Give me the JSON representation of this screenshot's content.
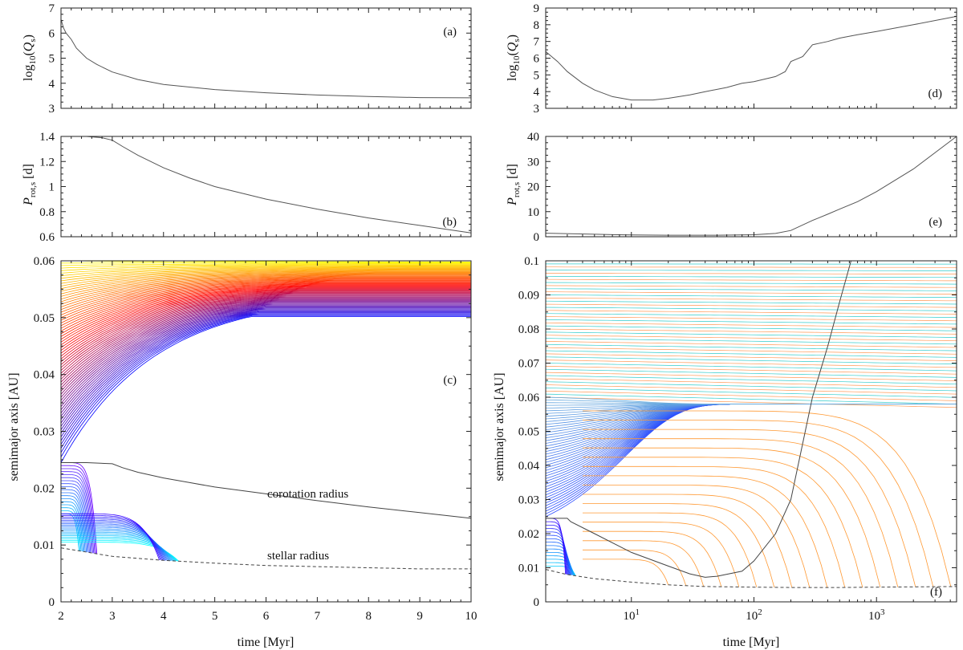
{
  "chart_data": [
    {
      "id": "a",
      "type": "line",
      "panel_label": "(a)",
      "ylabel": "log10(Qs)",
      "xlim": [
        2,
        10
      ],
      "ylim": [
        3,
        7
      ],
      "xscale": "linear",
      "xticks": [
        "2",
        "3",
        "4",
        "5",
        "6",
        "7",
        "8",
        "9",
        "10"
      ],
      "yticks": [
        "3",
        "4",
        "5",
        "6",
        "7"
      ],
      "series": [
        {
          "color": "#555555",
          "x": [
            2.0,
            2.05,
            2.1,
            2.2,
            2.3,
            2.5,
            2.7,
            3.0,
            3.5,
            4.0,
            5.0,
            6.0,
            7.0,
            8.0,
            9.0,
            10.0
          ],
          "y": [
            6.55,
            6.2,
            6.0,
            5.75,
            5.4,
            5.0,
            4.75,
            4.45,
            4.15,
            3.95,
            3.75,
            3.62,
            3.53,
            3.47,
            3.43,
            3.42
          ]
        }
      ]
    },
    {
      "id": "b",
      "type": "line",
      "panel_label": "(b)",
      "ylabel": "Prot,s [d]",
      "xlim": [
        2,
        10
      ],
      "ylim": [
        0.6,
        1.4
      ],
      "xscale": "linear",
      "xticks": [
        "2",
        "3",
        "4",
        "5",
        "6",
        "7",
        "8",
        "9",
        "10"
      ],
      "yticks": [
        "0.6",
        "0.8",
        "1",
        "1.2",
        "1.4"
      ],
      "series": [
        {
          "color": "#555555",
          "x": [
            2.0,
            2.5,
            2.8,
            3.0,
            3.2,
            3.5,
            4.0,
            4.5,
            5.0,
            6.0,
            7.0,
            8.0,
            9.0,
            10.0
          ],
          "y": [
            1.4,
            1.4,
            1.39,
            1.37,
            1.32,
            1.25,
            1.15,
            1.07,
            1.0,
            0.9,
            0.82,
            0.75,
            0.69,
            0.63
          ]
        }
      ]
    },
    {
      "id": "c",
      "type": "line",
      "panel_label": "(c)",
      "xlabel": "time [Myr]",
      "ylabel": "semimajor axis [AU]",
      "xlim": [
        2,
        10
      ],
      "ylim": [
        0,
        0.06
      ],
      "xscale": "linear",
      "xticks": [
        "2",
        "3",
        "4",
        "5",
        "6",
        "7",
        "8",
        "9",
        "10"
      ],
      "yticks": [
        "0",
        "0.01",
        "0.02",
        "0.03",
        "0.04",
        "0.05",
        "0.06"
      ],
      "annotations": [
        "corotation radius",
        "stellar radius"
      ],
      "corotation": {
        "x": [
          2.0,
          2.5,
          3.0,
          3.2,
          3.5,
          4.0,
          4.5,
          5.0,
          6.0,
          7.0,
          8.0,
          9.0,
          10.0
        ],
        "y": [
          0.0245,
          0.0245,
          0.0243,
          0.0236,
          0.0228,
          0.0218,
          0.021,
          0.0202,
          0.019,
          0.0178,
          0.0167,
          0.0157,
          0.0147
        ]
      },
      "stellar_radius": {
        "x": [
          2.0,
          3.0,
          4.0,
          5.0,
          6.0,
          7.0,
          8.0,
          9.0,
          10.0
        ],
        "y": [
          0.0095,
          0.008,
          0.0073,
          0.0068,
          0.0064,
          0.0062,
          0.006,
          0.0058,
          0.0058
        ]
      },
      "orbit_families": [
        {
          "description": "outward migrating orbits",
          "count": 70,
          "start_range": [
            0.0245,
            0.0605
          ],
          "asymptote": 0.0502,
          "color_range": [
            "#0000ff",
            "#ff0000",
            "#ffff00"
          ]
        },
        {
          "description": "inward migrating orbits (upper group)",
          "count": 18,
          "start_range": [
            0.0155,
            0.0245
          ],
          "color_range": [
            "#00ccff",
            "#6a00ff"
          ]
        },
        {
          "description": "inward migrating orbits (lower group)",
          "count": 18,
          "start_range": [
            0.0105,
            0.0155
          ],
          "color_range": [
            "#00ffff",
            "#3300ff"
          ]
        }
      ]
    },
    {
      "id": "d",
      "type": "line",
      "panel_label": "(d)",
      "ylabel": "log10(Qs)",
      "xlim": [
        2,
        4500
      ],
      "ylim": [
        3,
        9
      ],
      "xscale": "log",
      "yticks": [
        "3",
        "4",
        "5",
        "6",
        "7",
        "8",
        "9"
      ],
      "series": [
        {
          "color": "#555555",
          "x": [
            2,
            2.5,
            3,
            4,
            5,
            7,
            10,
            15,
            20,
            30,
            40,
            60,
            80,
            100,
            150,
            180,
            200,
            250,
            300,
            400,
            500,
            700,
            1000,
            2000,
            4500
          ],
          "y": [
            6.4,
            5.8,
            5.2,
            4.5,
            4.1,
            3.7,
            3.5,
            3.5,
            3.6,
            3.8,
            4.0,
            4.25,
            4.5,
            4.6,
            4.9,
            5.2,
            5.8,
            6.1,
            6.8,
            7.0,
            7.2,
            7.4,
            7.6,
            8.0,
            8.5
          ]
        }
      ]
    },
    {
      "id": "e",
      "type": "line",
      "panel_label": "(e)",
      "ylabel": "Prot,s [d]",
      "xlim": [
        2,
        4500
      ],
      "ylim": [
        0,
        40
      ],
      "xscale": "log",
      "yticks": [
        "0",
        "10",
        "20",
        "30",
        "40"
      ],
      "series": [
        {
          "color": "#555555",
          "x": [
            2,
            5,
            10,
            20,
            50,
            100,
            150,
            200,
            300,
            400,
            500,
            700,
            1000,
            2000,
            4500
          ],
          "y": [
            1.4,
            1.0,
            0.7,
            0.6,
            0.6,
            0.8,
            1.3,
            2.5,
            6.5,
            9.0,
            11.0,
            14.0,
            18.0,
            27.0,
            40.0
          ]
        }
      ]
    },
    {
      "id": "f",
      "type": "line",
      "panel_label": "(f)",
      "xlabel": "time [Myr]",
      "ylabel": "semimajor axis [AU]",
      "xlim": [
        2,
        4500
      ],
      "ylim": [
        0,
        0.1
      ],
      "xscale": "log",
      "xticks_major": [
        "10^1",
        "10^2",
        "10^3"
      ],
      "yticks": [
        "0",
        "0.01",
        "0.02",
        "0.03",
        "0.04",
        "0.05",
        "0.06",
        "0.07",
        "0.08",
        "0.09",
        "0.1"
      ],
      "corotation": {
        "x": [
          2,
          3,
          3.2,
          5,
          10,
          20,
          30,
          40,
          50,
          80,
          100,
          150,
          200,
          300,
          400,
          500,
          620
        ],
        "y": [
          0.0245,
          0.0245,
          0.0235,
          0.02,
          0.0145,
          0.0105,
          0.0082,
          0.0072,
          0.0075,
          0.009,
          0.012,
          0.02,
          0.03,
          0.06,
          0.075,
          0.088,
          0.1
        ]
      },
      "stellar_radius": {
        "x": [
          2,
          3,
          5,
          10,
          20,
          40,
          100,
          200,
          500,
          1000,
          4500
        ],
        "y": [
          0.0095,
          0.008,
          0.0068,
          0.0058,
          0.005,
          0.0045,
          0.0043,
          0.0042,
          0.0042,
          0.0043,
          0.0045
        ]
      },
      "orbit_families": [
        {
          "description": "outer orbits",
          "count": 45,
          "start_range": [
            0.06,
            0.1
          ],
          "color": "#33cccc"
        },
        {
          "description": "orbits converging to outer track",
          "count": 45,
          "start_range": [
            0.025,
            0.06
          ],
          "asymptote": 0.058,
          "color": "#1a3dff"
        },
        {
          "description": "orbits falling into star",
          "count": 17,
          "start_range": [
            0.0125,
            0.056
          ],
          "color": "#ff9933"
        },
        {
          "description": "early inward orbits",
          "count": 15,
          "start_range": [
            0.0105,
            0.0245
          ],
          "color_range": [
            "#00ccff",
            "#3300ff"
          ]
        }
      ]
    }
  ]
}
